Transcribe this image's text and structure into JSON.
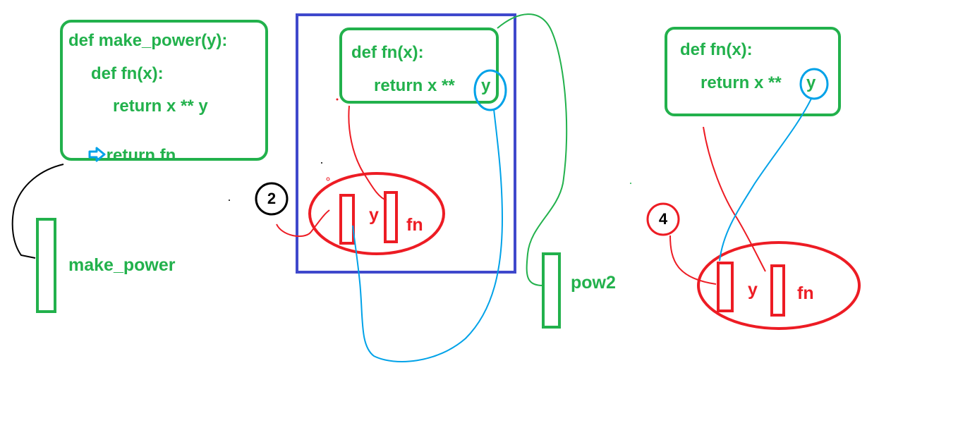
{
  "colors": {
    "green": "#22b14c",
    "red": "#ed1c24",
    "blue": "#00a2e8",
    "navy": "#3f48cc",
    "black": "#000000"
  },
  "code_block_1": {
    "lines": [
      "def make_power(y):",
      "def fn(x):",
      "return x ** y",
      "return fn"
    ],
    "current_line_icon": "arrow-right-icon"
  },
  "code_block_2": {
    "lines": [
      "def fn(x):",
      "return x **",
      "y"
    ]
  },
  "code_block_3": {
    "lines": [
      "def fn(x):",
      "return x **",
      "y"
    ]
  },
  "global_frame": {
    "make_power_label": "make_power",
    "pow2_label": "pow2"
  },
  "frame_1": {
    "argument": "2",
    "y_label": "y",
    "fn_label": "fn"
  },
  "frame_2": {
    "argument": "4",
    "y_label": "y",
    "fn_label": "fn"
  }
}
